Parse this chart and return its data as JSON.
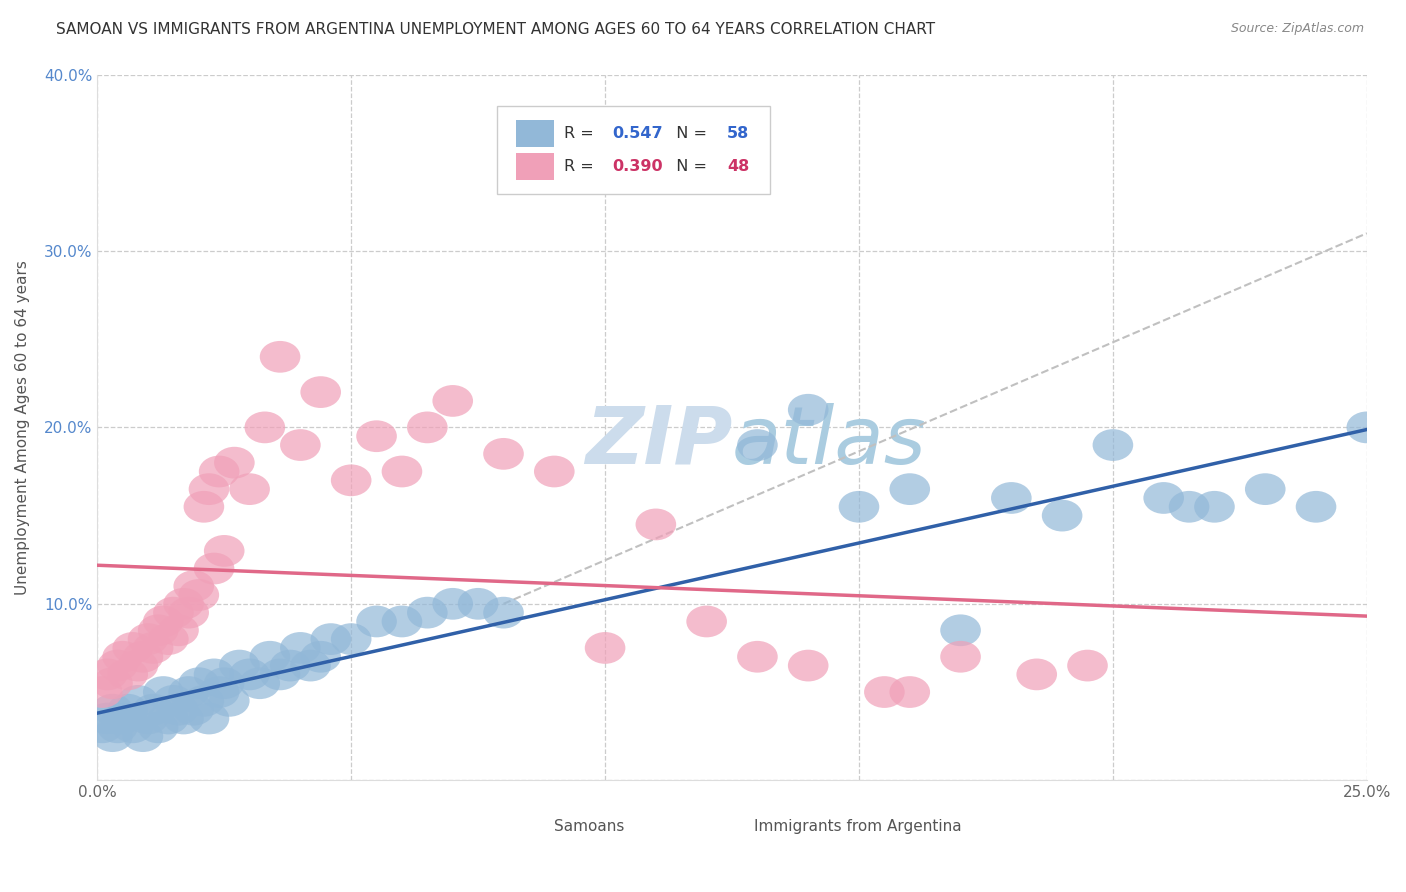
{
  "title": "SAMOAN VS IMMIGRANTS FROM ARGENTINA UNEMPLOYMENT AMONG AGES 60 TO 64 YEARS CORRELATION CHART",
  "source": "Source: ZipAtlas.com",
  "ylabel": "Unemployment Among Ages 60 to 64 years",
  "xlim": [
    0.0,
    0.25
  ],
  "ylim": [
    0.0,
    0.4
  ],
  "xticks": [
    0.0,
    0.05,
    0.1,
    0.15,
    0.2,
    0.25
  ],
  "yticks": [
    0.0,
    0.1,
    0.2,
    0.3,
    0.4
  ],
  "samoans_color": "#92b8d8",
  "argentina_color": "#f0a0b8",
  "samoans_line_color": "#3060a8",
  "argentina_line_color": "#e06888",
  "gray_line_color": "#c0c0c0",
  "samoans_x": [
    0.001,
    0.002,
    0.003,
    0.003,
    0.004,
    0.005,
    0.006,
    0.007,
    0.008,
    0.009,
    0.01,
    0.011,
    0.012,
    0.013,
    0.014,
    0.015,
    0.016,
    0.017,
    0.018,
    0.019,
    0.02,
    0.021,
    0.022,
    0.023,
    0.024,
    0.025,
    0.026,
    0.028,
    0.03,
    0.032,
    0.034,
    0.036,
    0.038,
    0.04,
    0.042,
    0.044,
    0.046,
    0.05,
    0.055,
    0.06,
    0.065,
    0.07,
    0.075,
    0.08,
    0.13,
    0.14,
    0.15,
    0.16,
    0.17,
    0.18,
    0.19,
    0.2,
    0.21,
    0.215,
    0.22,
    0.23,
    0.24,
    0.25
  ],
  "samoans_y": [
    0.03,
    0.035,
    0.025,
    0.04,
    0.03,
    0.035,
    0.04,
    0.03,
    0.045,
    0.025,
    0.035,
    0.04,
    0.03,
    0.05,
    0.035,
    0.045,
    0.04,
    0.035,
    0.05,
    0.04,
    0.055,
    0.045,
    0.035,
    0.06,
    0.05,
    0.055,
    0.045,
    0.065,
    0.06,
    0.055,
    0.07,
    0.06,
    0.065,
    0.075,
    0.065,
    0.07,
    0.08,
    0.08,
    0.09,
    0.09,
    0.095,
    0.1,
    0.1,
    0.095,
    0.19,
    0.21,
    0.155,
    0.165,
    0.085,
    0.16,
    0.15,
    0.19,
    0.16,
    0.155,
    0.155,
    0.165,
    0.155,
    0.2
  ],
  "argentina_x": [
    0.001,
    0.002,
    0.003,
    0.004,
    0.005,
    0.006,
    0.007,
    0.008,
    0.009,
    0.01,
    0.011,
    0.012,
    0.013,
    0.014,
    0.015,
    0.016,
    0.017,
    0.018,
    0.019,
    0.02,
    0.021,
    0.022,
    0.023,
    0.024,
    0.025,
    0.027,
    0.03,
    0.033,
    0.036,
    0.04,
    0.044,
    0.05,
    0.055,
    0.06,
    0.065,
    0.07,
    0.08,
    0.09,
    0.1,
    0.11,
    0.12,
    0.13,
    0.14,
    0.155,
    0.16,
    0.17,
    0.185,
    0.195
  ],
  "argentina_y": [
    0.05,
    0.06,
    0.055,
    0.065,
    0.07,
    0.06,
    0.075,
    0.065,
    0.07,
    0.08,
    0.075,
    0.085,
    0.09,
    0.08,
    0.095,
    0.085,
    0.1,
    0.095,
    0.11,
    0.105,
    0.155,
    0.165,
    0.12,
    0.175,
    0.13,
    0.18,
    0.165,
    0.2,
    0.24,
    0.19,
    0.22,
    0.17,
    0.195,
    0.175,
    0.2,
    0.215,
    0.185,
    0.175,
    0.075,
    0.145,
    0.09,
    0.07,
    0.065,
    0.05,
    0.05,
    0.07,
    0.06,
    0.065
  ],
  "background_color": "#ffffff",
  "watermark_color": "#ccdcec"
}
